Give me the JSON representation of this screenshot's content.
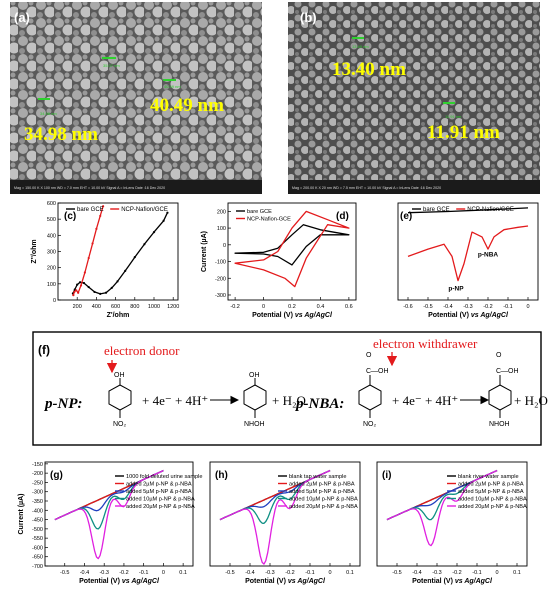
{
  "sem": {
    "a": {
      "label": "(a)",
      "sizes": [
        "34.98 nm",
        "40.49 nm"
      ],
      "small": [
        "34.98 nm",
        "40.49 nm",
        "35.07 nm"
      ],
      "footer": "Mag = 150.00 K X     100 nm     WD = 7.0 mm     EHT = 10.00 kV     Signal A = InLens     Date :16 Dec 2020"
    },
    "b": {
      "label": "(b)",
      "sizes": [
        "13.40 nm",
        "11.91 nm"
      ],
      "small": [
        "13.40 nm",
        "11.91 nm"
      ],
      "footer": "Mag = 200.00 K X     20 nm     WD = 7.5 mm     EHT = 10.00 kV     Signal A = InLens     Date :16 Dec 2020"
    }
  },
  "colors": {
    "black": "#000000",
    "red": "#e31a1c",
    "blue": "#1f3fbf",
    "teal": "#0f8f84",
    "magenta": "#e020e0",
    "yellow": "#ffff00",
    "navy": "#1f2f8f"
  },
  "chart_data": [
    {
      "id": "c",
      "type": "line",
      "label": "(c)",
      "xlabel": "Z'/ohm",
      "ylabel": "Z''/ohm",
      "xlim": [
        0,
        1250
      ],
      "ylim": [
        0,
        600
      ],
      "xticks": [
        200,
        400,
        600,
        800,
        1000,
        1200
      ],
      "yticks": [
        0,
        100,
        200,
        300,
        400,
        500,
        600
      ],
      "legend": [
        "bare GCE",
        "NCP-Nafion/GCE"
      ],
      "series": [
        {
          "name": "bare GCE",
          "color": "black",
          "x": [
            155,
            175,
            200,
            230,
            270,
            320,
            380,
            440,
            500,
            560,
            620,
            700,
            800,
            900,
            1000,
            1100,
            1140
          ],
          "y": [
            40,
            65,
            95,
            110,
            105,
            80,
            50,
            38,
            45,
            75,
            115,
            180,
            265,
            345,
            420,
            490,
            540
          ]
        },
        {
          "name": "NCP-Nafion/GCE",
          "color": "red",
          "x": [
            160,
            170,
            190,
            210,
            240,
            280,
            320,
            360,
            400,
            440,
            470
          ],
          "y": [
            30,
            50,
            60,
            45,
            90,
            170,
            260,
            350,
            440,
            520,
            580
          ]
        }
      ]
    },
    {
      "id": "d",
      "type": "line",
      "label": "(d)",
      "xlabel": "Potential (V) vs Ag/AgCl",
      "ylabel": "Current (µA)",
      "xlim": [
        -0.25,
        0.65
      ],
      "ylim": [
        -330,
        250
      ],
      "xticks": [
        -0.2,
        0.0,
        0.2,
        0.4,
        0.6
      ],
      "yticks": [
        -300,
        -200,
        -100,
        0,
        100,
        200
      ],
      "legend": [
        "bare GCE",
        "NCP-Nafion-GCE"
      ],
      "series": [
        {
          "name": "bare GCE",
          "color": "black",
          "loop": true,
          "x": [
            -0.2,
            0.0,
            0.1,
            0.2,
            0.28,
            0.4,
            0.6,
            0.4,
            0.3,
            0.2,
            0.1,
            0.0,
            -0.2
          ],
          "y": [
            -50,
            -45,
            -20,
            60,
            120,
            90,
            60,
            60,
            -10,
            -120,
            -70,
            -55,
            -50
          ]
        },
        {
          "name": "NCP-Nafion-GCE",
          "color": "red",
          "loop": true,
          "x": [
            -0.2,
            0.0,
            0.1,
            0.2,
            0.3,
            0.45,
            0.6,
            0.45,
            0.3,
            0.22,
            0.15,
            0.0,
            -0.2
          ],
          "y": [
            -110,
            -90,
            -40,
            100,
            200,
            150,
            100,
            120,
            -80,
            -250,
            -200,
            -150,
            -110
          ]
        }
      ]
    },
    {
      "id": "e",
      "type": "line",
      "label": "(e)",
      "xlabel": "Potential (V) vs Ag/AgCl",
      "ylabel": "",
      "xlim": [
        -0.65,
        0.05
      ],
      "ylim": [
        -400,
        0
      ],
      "xticks": [
        -0.6,
        -0.5,
        -0.4,
        -0.3,
        -0.2,
        -0.1,
        0.0
      ],
      "legend": [
        "bare GCE",
        "NCP-Nafion/GCE"
      ],
      "annotations": [
        "p-NP",
        "p-NBA"
      ],
      "series": [
        {
          "name": "bare GCE",
          "color": "black",
          "x": [
            -0.6,
            -0.4,
            -0.2,
            0.0
          ],
          "y": [
            -40,
            -35,
            -28,
            -20
          ]
        },
        {
          "name": "NCP-Nafion/GCE",
          "color": "red",
          "x": [
            -0.6,
            -0.5,
            -0.42,
            -0.38,
            -0.35,
            -0.32,
            -0.28,
            -0.23,
            -0.2,
            -0.17,
            -0.12,
            -0.05,
            0.0
          ],
          "y": [
            -220,
            -190,
            -170,
            -220,
            -320,
            -250,
            -120,
            -140,
            -190,
            -140,
            -110,
            -100,
            -95
          ]
        }
      ]
    },
    {
      "id": "g",
      "type": "line",
      "label": "(g)",
      "xlabel": "Potential (V) vs Ag/AgCl",
      "ylabel": "Current (µA)",
      "xlim": [
        -0.6,
        0.15
      ],
      "ylim": [
        -700,
        -140
      ],
      "xticks": [
        -0.5,
        -0.4,
        -0.3,
        -0.2,
        -0.1,
        0.0,
        0.1
      ],
      "yticks": [
        -700,
        -650,
        -600,
        -550,
        -500,
        -450,
        -400,
        -350,
        -300,
        -250,
        -200,
        -150
      ],
      "legend": [
        "1000 fold deluted urine sample",
        "added 2µM p-NP & p-NBA",
        "added 5µM p-NP & p-NBA",
        "added 10µM p-NP & p-NBA",
        "added 20µM p-NP & p-NBA"
      ],
      "series": [
        {
          "name": "1000 fold deluted urine sample",
          "color": "black",
          "peak": [
            -280,
            -240
          ]
        },
        {
          "name": "added 2µM p-NP & p-NBA",
          "color": "red",
          "peak": [
            -340,
            -270
          ]
        },
        {
          "name": "added 5µM p-NP & p-NBA",
          "color": "blue",
          "peak": [
            -400,
            -300
          ]
        },
        {
          "name": "added 10µM p-NP & p-NBA",
          "color": "teal",
          "peak": [
            -500,
            -340
          ]
        },
        {
          "name": "added 20µM p-NP & p-NBA",
          "color": "magenta",
          "peak": [
            -660,
            -380
          ]
        }
      ]
    },
    {
      "id": "h",
      "type": "line",
      "label": "(h)",
      "xlabel": "Potential (V) vs Ag/AgCl",
      "ylabel": "",
      "xlim": [
        -0.6,
        0.15
      ],
      "ylim": [
        -700,
        -140
      ],
      "xticks": [
        -0.5,
        -0.4,
        -0.3,
        -0.2,
        -0.1,
        0.0,
        0.1
      ],
      "legend": [
        "blank tap water sample",
        "added 2µM p-NP & p-NBA",
        "added 5µM p-NP & p-NBA",
        "added 10µM p-NP & p-NBA",
        "added 20µM p-NP & p-NBA"
      ],
      "series": [
        {
          "name": "blank tap water sample",
          "color": "black",
          "peak": [
            -290,
            -250
          ]
        },
        {
          "name": "added 2µM p-NP & p-NBA",
          "color": "red",
          "peak": [
            -340,
            -280
          ]
        },
        {
          "name": "added 5µM p-NP & p-NBA",
          "color": "blue",
          "peak": [
            -380,
            -300
          ]
        },
        {
          "name": "added 10µM p-NP & p-NBA",
          "color": "teal",
          "peak": [
            -470,
            -340
          ]
        },
        {
          "name": "added 20µM p-NP & p-NBA",
          "color": "magenta",
          "peak": [
            -690,
            -390
          ]
        }
      ]
    },
    {
      "id": "i",
      "type": "line",
      "label": "(i)",
      "xlabel": "Potential (V) vs Ag/AgCl",
      "ylabel": "",
      "xlim": [
        -0.6,
        0.15
      ],
      "ylim": [
        -700,
        -140
      ],
      "xticks": [
        -0.5,
        -0.4,
        -0.3,
        -0.2,
        -0.1,
        0.0,
        0.1
      ],
      "legend": [
        "blank river water sample",
        "added 2µM p-NP & p-NBA",
        "added 5µM p-NP & p-NBA",
        "added 10µM p-NP & p-NBA",
        "added 20µM p-NP & p-NBA"
      ],
      "series": [
        {
          "name": "blank river water sample",
          "color": "black",
          "peak": [
            -280,
            -240
          ]
        },
        {
          "name": "added 2µM p-NP & p-NBA",
          "color": "red",
          "peak": [
            -320,
            -260
          ]
        },
        {
          "name": "added 5µM p-NP & p-NBA",
          "color": "blue",
          "peak": [
            -370,
            -280
          ]
        },
        {
          "name": "added 10µM p-NP & p-NBA",
          "color": "teal",
          "peak": [
            -450,
            -310
          ]
        },
        {
          "name": "added 20µM p-NP & p-NBA",
          "color": "magenta",
          "peak": [
            -590,
            -350
          ]
        }
      ]
    }
  ],
  "scheme": {
    "label": "(f)",
    "pnp": "p-NP:",
    "pnba": "p-NBA:",
    "donor": "electron donor",
    "withdrawer": "electron withdrawer",
    "reagents": "+ 4e⁻ + 4H⁺",
    "water": "+ H₂O",
    "oh": "OH",
    "no2": "NO₂",
    "nhoh": "NHOH",
    "cooh": "C—OH",
    "o": "O"
  }
}
